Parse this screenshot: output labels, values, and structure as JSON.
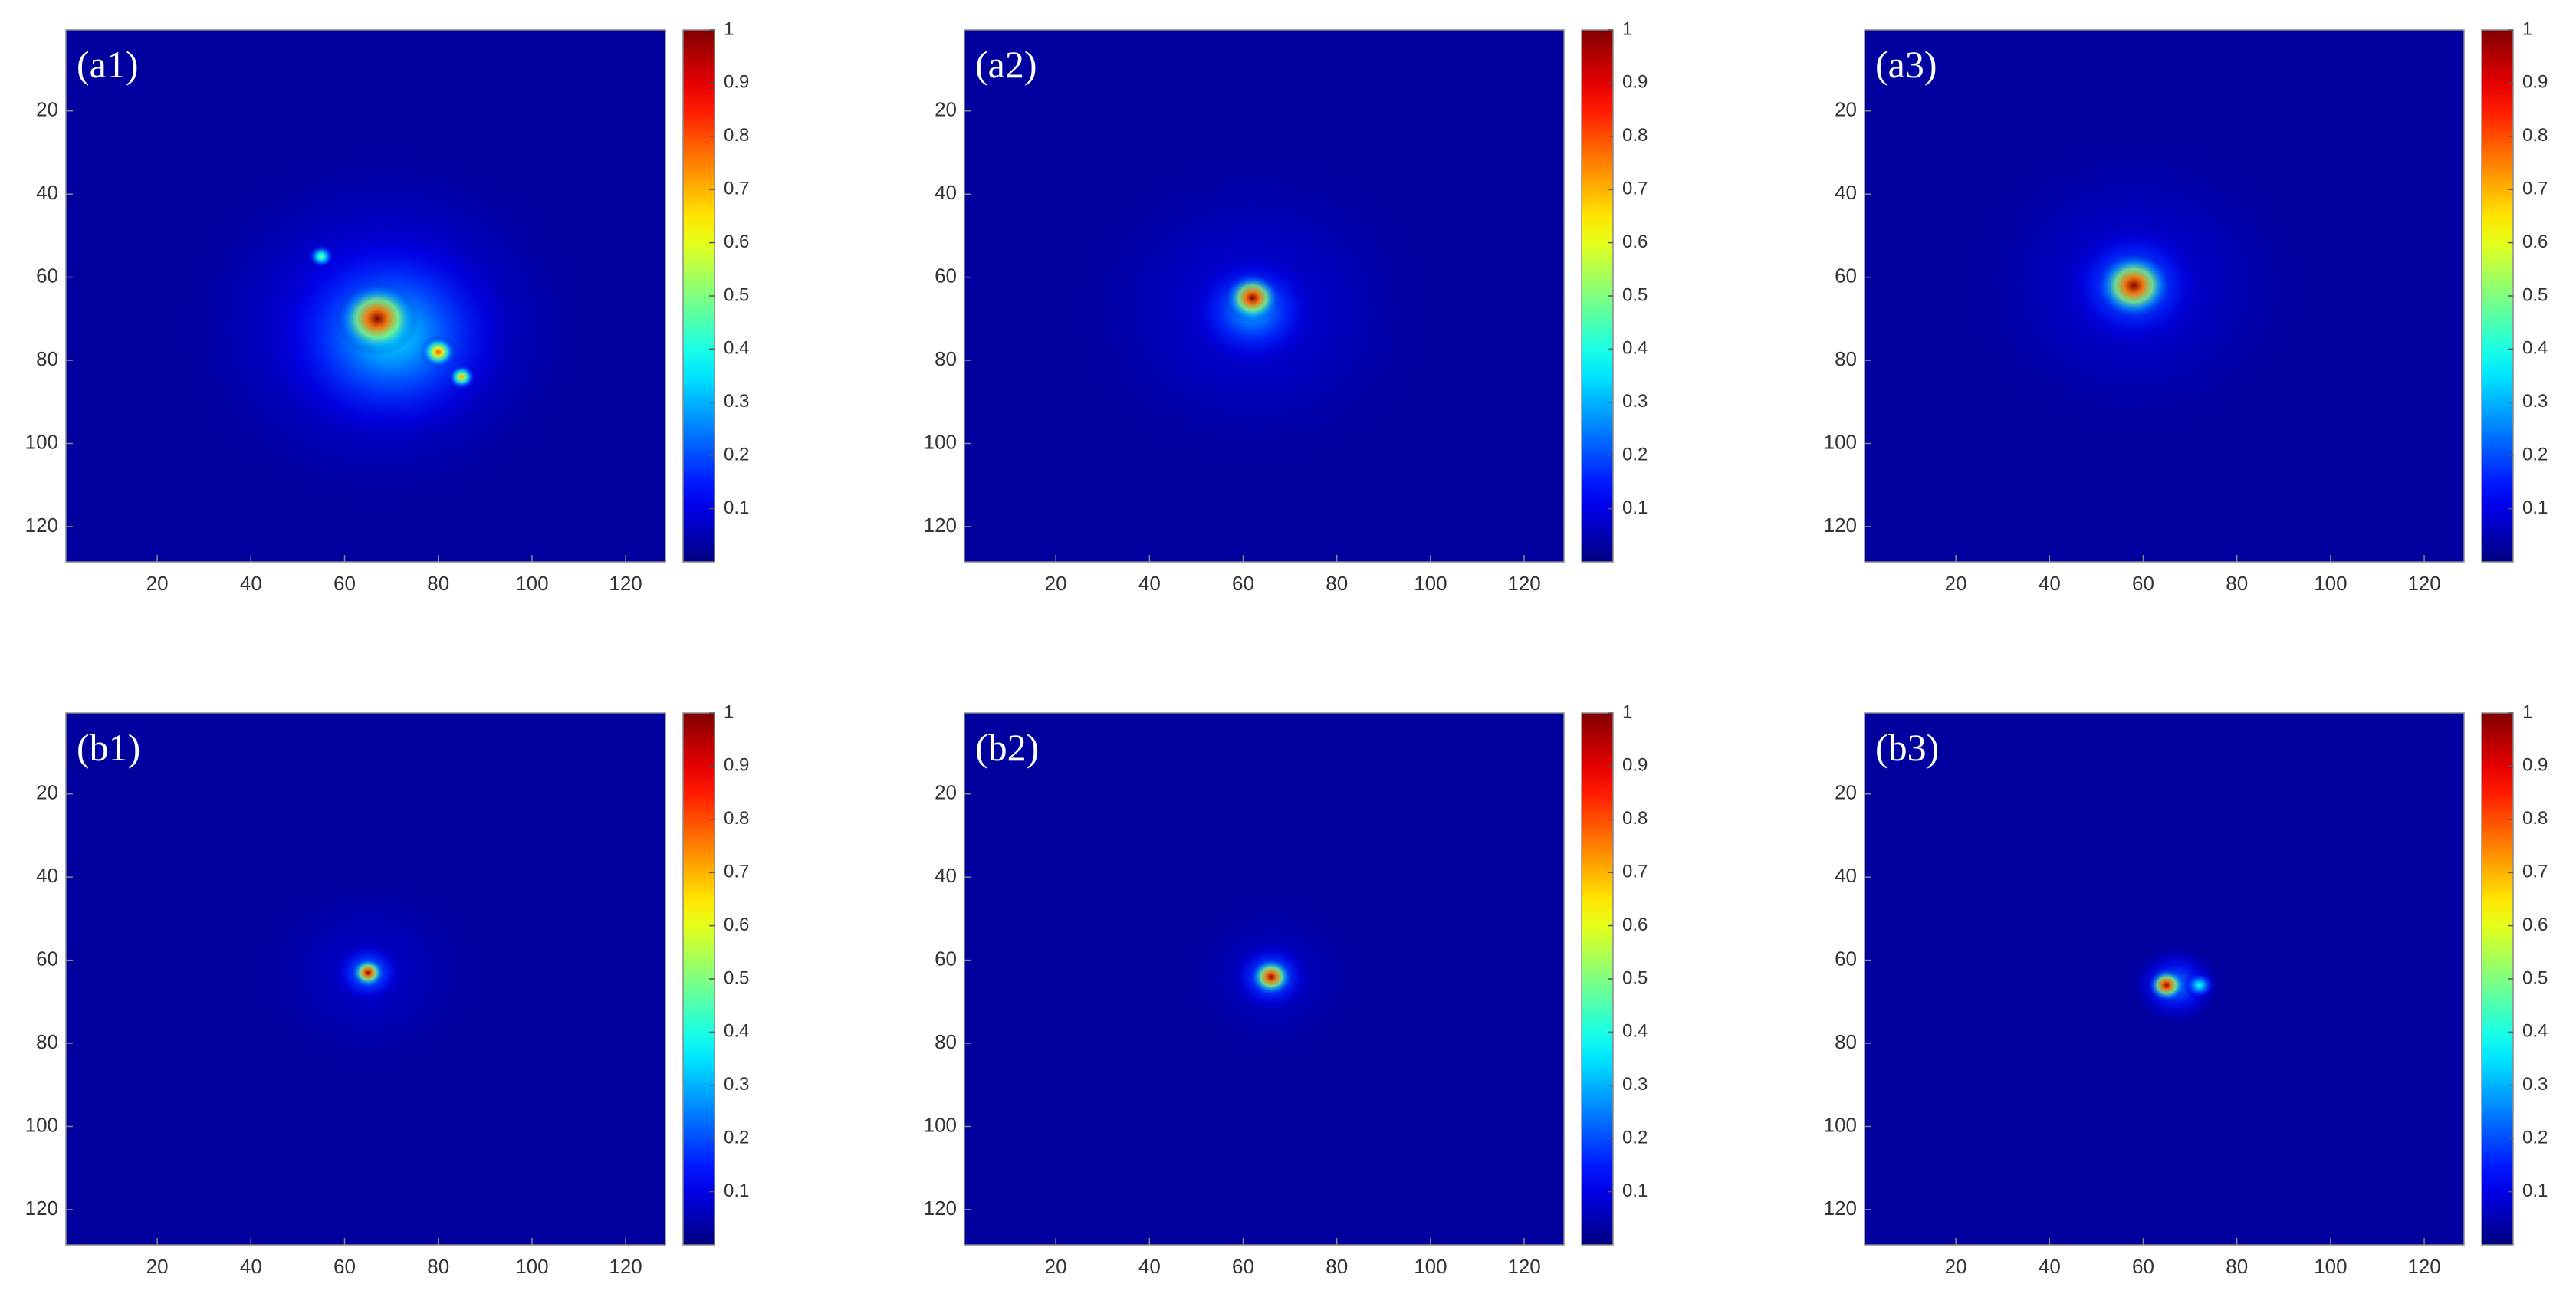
{
  "chart_data": [
    {
      "type": "heatmap",
      "label": "(a1)",
      "colormap": "jet",
      "xlim": [
        0.5,
        128.5
      ],
      "ylim": [
        0.5,
        128.5
      ],
      "xticks": [
        20,
        40,
        60,
        80,
        100,
        120
      ],
      "yticks": [
        20,
        40,
        60,
        80,
        100,
        120
      ],
      "clim": [
        0,
        1
      ],
      "cticks": [
        0.1,
        0.2,
        0.3,
        0.4,
        0.5,
        0.6,
        0.7,
        0.8,
        0.9,
        1
      ],
      "spots": [
        {
          "x": 68,
          "y": 72,
          "value": 0.15,
          "radius": 45
        },
        {
          "x": 70,
          "y": 74,
          "value": 0.35,
          "radius": 28
        },
        {
          "x": 55,
          "y": 55,
          "value": 0.5,
          "radius": 3
        },
        {
          "x": 85,
          "y": 84,
          "value": 0.7,
          "radius": 3
        },
        {
          "x": 80,
          "y": 78,
          "value": 0.8,
          "radius": 4
        },
        {
          "x": 67,
          "y": 70,
          "value": 1,
          "radius": 9
        }
      ]
    },
    {
      "type": "heatmap",
      "label": "(a2)",
      "colormap": "jet",
      "xlim": [
        0.5,
        128.5
      ],
      "ylim": [
        0.5,
        128.5
      ],
      "xticks": [
        20,
        40,
        60,
        80,
        100,
        120
      ],
      "yticks": [
        20,
        40,
        60,
        80,
        100,
        120
      ],
      "clim": [
        0,
        1
      ],
      "cticks": [
        0.1,
        0.2,
        0.3,
        0.4,
        0.5,
        0.6,
        0.7,
        0.8,
        0.9,
        1
      ],
      "spots": [
        {
          "x": 62,
          "y": 68,
          "value": 0.1,
          "radius": 40
        },
        {
          "x": 62,
          "y": 68,
          "value": 0.3,
          "radius": 15
        },
        {
          "x": 62,
          "y": 65,
          "value": 1,
          "radius": 6
        }
      ]
    },
    {
      "type": "heatmap",
      "label": "(a3)",
      "colormap": "jet",
      "xlim": [
        0.5,
        128.5
      ],
      "ylim": [
        0.5,
        128.5
      ],
      "xticks": [
        20,
        40,
        60,
        80,
        100,
        120
      ],
      "yticks": [
        20,
        40,
        60,
        80,
        100,
        120
      ],
      "clim": [
        0,
        1
      ],
      "cticks": [
        0.1,
        0.2,
        0.3,
        0.4,
        0.5,
        0.6,
        0.7,
        0.8,
        0.9,
        1
      ],
      "spots": [
        {
          "x": 58,
          "y": 62,
          "value": 0.1,
          "radius": 38
        },
        {
          "x": 58,
          "y": 62,
          "value": 0.3,
          "radius": 16
        },
        {
          "x": 58,
          "y": 62,
          "value": 1,
          "radius": 8
        }
      ]
    },
    {
      "type": "heatmap",
      "label": "(b1)",
      "colormap": "jet",
      "xlim": [
        0.5,
        128.5
      ],
      "ylim": [
        0.5,
        128.5
      ],
      "xticks": [
        20,
        40,
        60,
        80,
        100,
        120
      ],
      "yticks": [
        20,
        40,
        60,
        80,
        100,
        120
      ],
      "clim": [
        0,
        1
      ],
      "cticks": [
        0.1,
        0.2,
        0.3,
        0.4,
        0.5,
        0.6,
        0.7,
        0.8,
        0.9,
        1
      ],
      "spots": [
        {
          "x": 65,
          "y": 63,
          "value": 0.08,
          "radius": 25
        },
        {
          "x": 65,
          "y": 63,
          "value": 0.3,
          "radius": 8
        },
        {
          "x": 65,
          "y": 63,
          "value": 1,
          "radius": 3.5
        }
      ]
    },
    {
      "type": "heatmap",
      "label": "(b2)",
      "colormap": "jet",
      "xlim": [
        0.5,
        128.5
      ],
      "ylim": [
        0.5,
        128.5
      ],
      "xticks": [
        20,
        40,
        60,
        80,
        100,
        120
      ],
      "yticks": [
        20,
        40,
        60,
        80,
        100,
        120
      ],
      "clim": [
        0,
        1
      ],
      "cticks": [
        0.1,
        0.2,
        0.3,
        0.4,
        0.5,
        0.6,
        0.7,
        0.8,
        0.9,
        1
      ],
      "spots": [
        {
          "x": 66,
          "y": 64,
          "value": 0.08,
          "radius": 20
        },
        {
          "x": 66,
          "y": 64,
          "value": 0.3,
          "radius": 9
        },
        {
          "x": 66,
          "y": 64,
          "value": 1,
          "radius": 4.5
        }
      ]
    },
    {
      "type": "heatmap",
      "label": "(b3)",
      "colormap": "jet",
      "xlim": [
        0.5,
        128.5
      ],
      "ylim": [
        0.5,
        128.5
      ],
      "xticks": [
        20,
        40,
        60,
        80,
        100,
        120
      ],
      "yticks": [
        20,
        40,
        60,
        80,
        100,
        120
      ],
      "clim": [
        0,
        1
      ],
      "cticks": [
        0.1,
        0.2,
        0.3,
        0.4,
        0.5,
        0.6,
        0.7,
        0.8,
        0.9,
        1
      ],
      "spots": [
        {
          "x": 67,
          "y": 66,
          "value": 0.25,
          "radius": 10
        },
        {
          "x": 72,
          "y": 66,
          "value": 0.4,
          "radius": 3.5
        },
        {
          "x": 65,
          "y": 66,
          "value": 1,
          "radius": 4
        }
      ]
    }
  ]
}
